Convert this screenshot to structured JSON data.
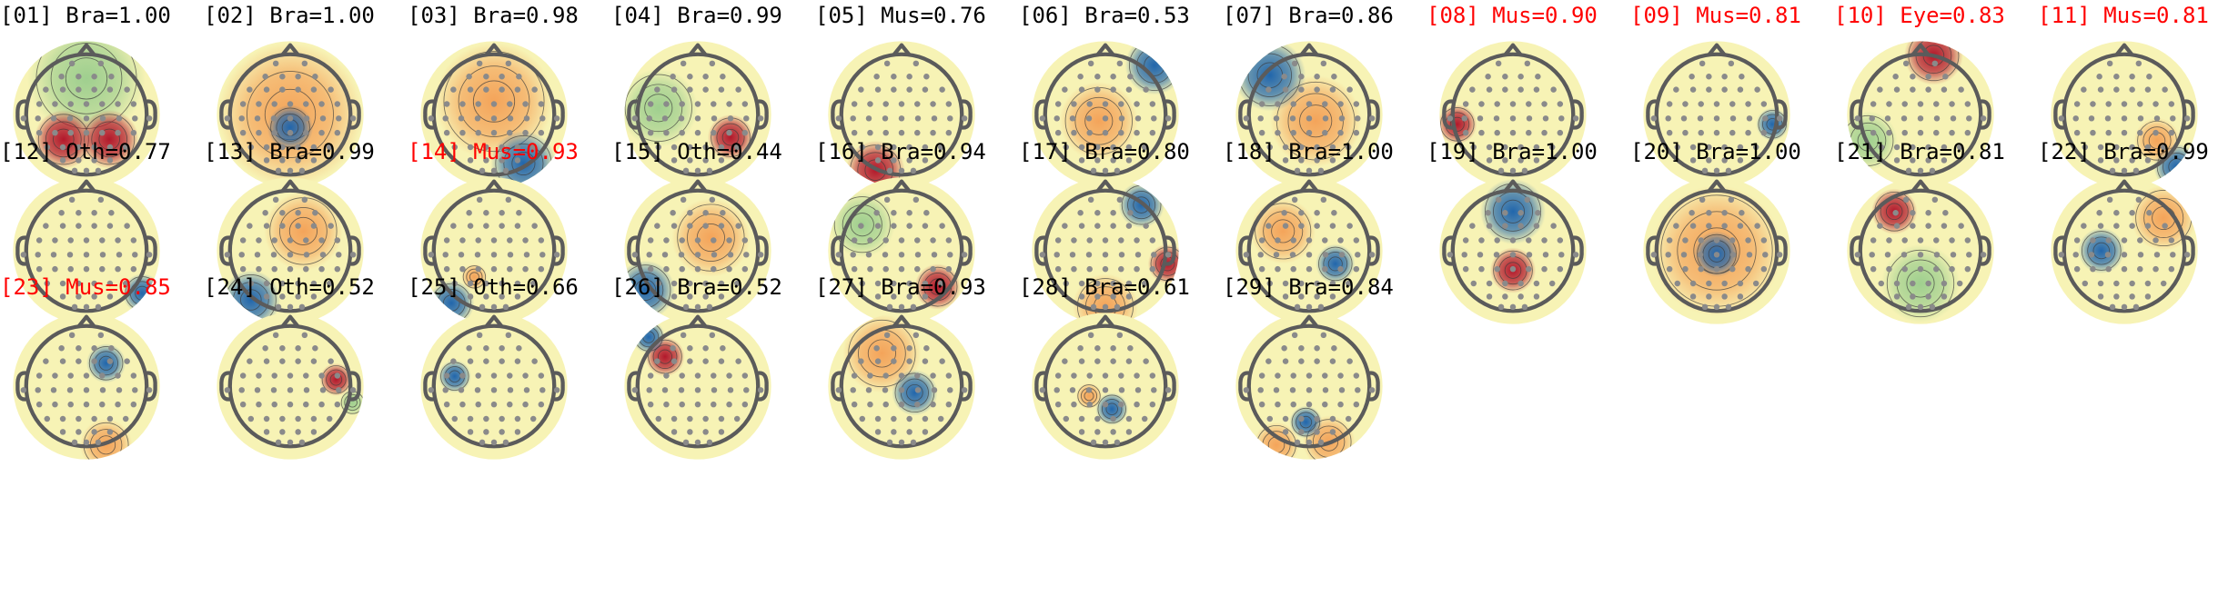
{
  "colors": {
    "normal_label": "#000000",
    "flagged_label": "#ff0000",
    "head_outline": "#5b5b5b",
    "electrode": "#8a8a8a",
    "contour": "#3a3a3a",
    "neutral": "#f7f3b5",
    "red": "#b2182b",
    "orange": "#f4a45a",
    "green": "#9fcf8f",
    "blue": "#2166ac"
  },
  "components": [
    {
      "label": "[01] Bra=1.00",
      "flagged": false,
      "blobs": [
        {
          "dx": -0.35,
          "dy": 0.38,
          "r": 0.45,
          "color": "red"
        },
        {
          "dx": 0.35,
          "dy": 0.38,
          "r": 0.45,
          "color": "red"
        },
        {
          "dx": 0,
          "dy": -0.55,
          "r": 0.9,
          "color": "green"
        }
      ]
    },
    {
      "label": "[02] Bra=1.00",
      "flagged": false,
      "blobs": [
        {
          "dx": 0,
          "dy": 0.2,
          "r": 0.35,
          "color": "blue"
        },
        {
          "dx": 0,
          "dy": 0,
          "r": 1.1,
          "color": "orange"
        }
      ]
    },
    {
      "label": "[03] Bra=0.98",
      "flagged": false,
      "blobs": [
        {
          "dx": 0.45,
          "dy": 0.75,
          "r": 0.5,
          "color": "blue"
        },
        {
          "dx": 0,
          "dy": -0.2,
          "r": 0.9,
          "color": "orange"
        }
      ]
    },
    {
      "label": "[04] Bra=0.99",
      "flagged": false,
      "blobs": [
        {
          "dx": 0.5,
          "dy": 0.35,
          "r": 0.35,
          "color": "red"
        },
        {
          "dx": -0.6,
          "dy": -0.1,
          "r": 0.6,
          "color": "green"
        }
      ]
    },
    {
      "label": "[05] Mus=0.76",
      "flagged": false,
      "blobs": [
        {
          "dx": -0.4,
          "dy": 0.85,
          "r": 0.45,
          "color": "red"
        }
      ]
    },
    {
      "label": "[06] Bra=0.53",
      "flagged": false,
      "blobs": [
        {
          "dx": 0.75,
          "dy": -0.75,
          "r": 0.45,
          "color": "blue"
        },
        {
          "dx": -0.1,
          "dy": 0.1,
          "r": 0.6,
          "color": "orange"
        }
      ]
    },
    {
      "label": "[07] Bra=0.86",
      "flagged": false,
      "blobs": [
        {
          "dx": -0.6,
          "dy": -0.6,
          "r": 0.55,
          "color": "blue"
        },
        {
          "dx": 0.1,
          "dy": 0.1,
          "r": 0.7,
          "color": "orange"
        }
      ]
    },
    {
      "label": "[08] Mus=0.90",
      "flagged": true,
      "blobs": [
        {
          "dx": -0.85,
          "dy": 0.15,
          "r": 0.3,
          "color": "red"
        }
      ]
    },
    {
      "label": "[09] Mus=0.81",
      "flagged": true,
      "blobs": [
        {
          "dx": 0.85,
          "dy": 0.15,
          "r": 0.25,
          "color": "blue"
        }
      ]
    },
    {
      "label": "[10] Eye=0.83",
      "flagged": true,
      "blobs": [
        {
          "dx": 0.2,
          "dy": -0.9,
          "r": 0.45,
          "color": "red"
        },
        {
          "dx": -0.8,
          "dy": 0.4,
          "r": 0.45,
          "color": "green"
        }
      ]
    },
    {
      "label": "[11] Mus=0.81",
      "flagged": true,
      "blobs": [
        {
          "dx": 0.8,
          "dy": 0.8,
          "r": 0.35,
          "color": "blue"
        },
        {
          "dx": 0.5,
          "dy": 0.4,
          "r": 0.35,
          "color": "orange"
        }
      ]
    },
    {
      "label": "[12] Oth=0.77",
      "flagged": false,
      "blobs": [
        {
          "dx": 0.85,
          "dy": 0.65,
          "r": 0.3,
          "color": "blue"
        }
      ]
    },
    {
      "label": "[13] Bra=0.99",
      "flagged": false,
      "blobs": [
        {
          "dx": -0.6,
          "dy": 0.75,
          "r": 0.45,
          "color": "blue"
        },
        {
          "dx": 0.2,
          "dy": -0.3,
          "r": 0.6,
          "color": "orange"
        }
      ]
    },
    {
      "label": "[14] Mus=0.93",
      "flagged": true,
      "blobs": [
        {
          "dx": -0.65,
          "dy": 0.8,
          "r": 0.35,
          "color": "blue"
        },
        {
          "dx": -0.3,
          "dy": 0.4,
          "r": 0.2,
          "color": "orange"
        }
      ]
    },
    {
      "label": "[15] Oth=0.44",
      "flagged": false,
      "blobs": [
        {
          "dx": -0.8,
          "dy": 0.6,
          "r": 0.45,
          "color": "blue"
        },
        {
          "dx": 0.2,
          "dy": -0.2,
          "r": 0.6,
          "color": "orange"
        }
      ]
    },
    {
      "label": "[16] Bra=0.94",
      "flagged": false,
      "blobs": [
        {
          "dx": 0.55,
          "dy": 0.55,
          "r": 0.35,
          "color": "red"
        },
        {
          "dx": -0.6,
          "dy": -0.4,
          "r": 0.5,
          "color": "green"
        }
      ]
    },
    {
      "label": "[17] Bra=0.80",
      "flagged": false,
      "blobs": [
        {
          "dx": 0.55,
          "dy": -0.7,
          "r": 0.35,
          "color": "blue"
        },
        {
          "dx": 0,
          "dy": 0.85,
          "r": 0.5,
          "color": "orange"
        },
        {
          "dx": 0.95,
          "dy": 0.2,
          "r": 0.3,
          "color": "red"
        }
      ]
    },
    {
      "label": "[18] Bra=1.00",
      "flagged": false,
      "blobs": [
        {
          "dx": 0.4,
          "dy": 0.2,
          "r": 0.3,
          "color": "blue"
        },
        {
          "dx": -0.4,
          "dy": -0.3,
          "r": 0.5,
          "color": "orange"
        }
      ]
    },
    {
      "label": "[19] Bra=1.00",
      "flagged": false,
      "blobs": [
        {
          "dx": 0,
          "dy": -0.6,
          "r": 0.5,
          "color": "blue"
        },
        {
          "dx": 0,
          "dy": 0.3,
          "r": 0.35,
          "color": "red"
        }
      ]
    },
    {
      "label": "[20] Bra=1.00",
      "flagged": false,
      "blobs": [
        {
          "dx": 0,
          "dy": 0.05,
          "r": 0.35,
          "color": "blue"
        },
        {
          "dx": 0,
          "dy": 0,
          "r": 1.0,
          "color": "orange"
        }
      ]
    },
    {
      "label": "[21] Bra=0.81",
      "flagged": false,
      "blobs": [
        {
          "dx": -0.4,
          "dy": -0.6,
          "r": 0.35,
          "color": "red"
        },
        {
          "dx": 0,
          "dy": 0.5,
          "r": 0.6,
          "color": "green"
        }
      ]
    },
    {
      "label": "[22] Bra=0.99",
      "flagged": false,
      "blobs": [
        {
          "dx": -0.35,
          "dy": 0.0,
          "r": 0.35,
          "color": "blue"
        },
        {
          "dx": 0.6,
          "dy": -0.5,
          "r": 0.5,
          "color": "orange"
        }
      ]
    },
    {
      "label": "[23] Mus=0.85",
      "flagged": true,
      "blobs": [
        {
          "dx": 0.3,
          "dy": -0.35,
          "r": 0.3,
          "color": "blue"
        },
        {
          "dx": 0.3,
          "dy": 0.9,
          "r": 0.4,
          "color": "orange"
        }
      ]
    },
    {
      "label": "[24] Oth=0.52",
      "flagged": false,
      "blobs": [
        {
          "dx": 0.7,
          "dy": -0.1,
          "r": 0.25,
          "color": "red"
        },
        {
          "dx": 0.95,
          "dy": 0.25,
          "r": 0.2,
          "color": "green"
        }
      ]
    },
    {
      "label": "[25] Oth=0.66",
      "flagged": false,
      "blobs": [
        {
          "dx": -0.6,
          "dy": -0.15,
          "r": 0.25,
          "color": "blue"
        }
      ]
    },
    {
      "label": "[26] Bra=0.52",
      "flagged": false,
      "blobs": [
        {
          "dx": -0.5,
          "dy": -0.45,
          "r": 0.3,
          "color": "red"
        },
        {
          "dx": -0.75,
          "dy": -0.75,
          "r": 0.25,
          "color": "blue"
        }
      ]
    },
    {
      "label": "[27] Bra=0.93",
      "flagged": false,
      "blobs": [
        {
          "dx": 0.2,
          "dy": 0.1,
          "r": 0.35,
          "color": "blue"
        },
        {
          "dx": -0.3,
          "dy": -0.5,
          "r": 0.6,
          "color": "orange"
        }
      ]
    },
    {
      "label": "[28] Bra=0.61",
      "flagged": false,
      "blobs": [
        {
          "dx": 0.1,
          "dy": 0.35,
          "r": 0.25,
          "color": "blue"
        },
        {
          "dx": -0.25,
          "dy": 0.15,
          "r": 0.2,
          "color": "orange"
        }
      ]
    },
    {
      "label": "[29] Bra=0.84",
      "flagged": false,
      "blobs": [
        {
          "dx": -0.05,
          "dy": 0.55,
          "r": 0.25,
          "color": "blue"
        },
        {
          "dx": 0.3,
          "dy": 0.85,
          "r": 0.4,
          "color": "orange"
        },
        {
          "dx": -0.5,
          "dy": 0.9,
          "r": 0.35,
          "color": "orange"
        }
      ]
    }
  ]
}
